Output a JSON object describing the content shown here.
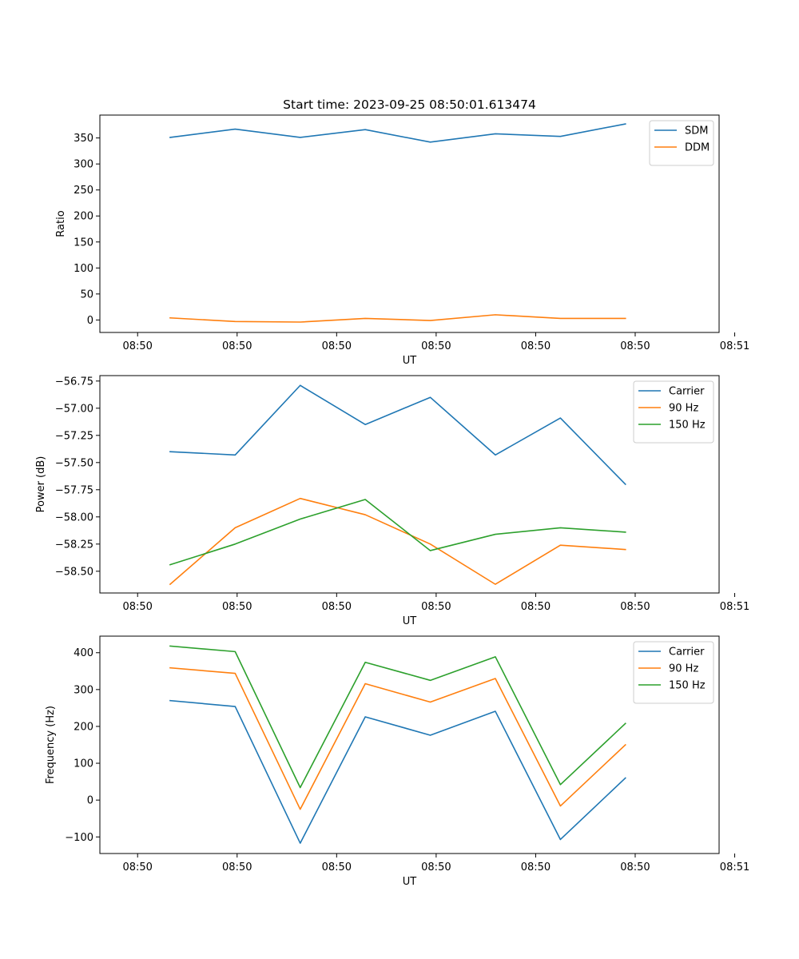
{
  "figure_title": "Start time: 2023-09-25 08:50:01.613474",
  "colors": {
    "blue": "#1f77b4",
    "orange": "#ff7f0e",
    "green": "#2ca02c"
  },
  "chart_data": [
    {
      "type": "line",
      "title": "Start time: 2023-09-25 08:50:01.613474",
      "xlabel": "UT",
      "ylabel": "Ratio",
      "x": [
        0.5,
        1.5,
        2.5,
        3.5,
        4.5,
        5.5,
        6.5,
        7.5
      ],
      "xlim": [
        -0.58,
        8.94
      ],
      "x_ticks": [
        0,
        1.53,
        3.06,
        4.59,
        6.12,
        7.65,
        9.18
      ],
      "x_tick_labels": [
        "08:50",
        "08:50",
        "08:50",
        "08:50",
        "08:50",
        "08:50",
        "08:51"
      ],
      "ylim": [
        -24,
        394
      ],
      "y_ticks": [
        0,
        50,
        100,
        150,
        200,
        250,
        300,
        350
      ],
      "y_tick_labels": [
        "0",
        "50",
        "100",
        "150",
        "200",
        "250",
        "300",
        "350"
      ],
      "legend_position": "top-right",
      "series": [
        {
          "name": "SDM",
          "color": "#1f77b4",
          "values": [
            351,
            367,
            351,
            366,
            342,
            358,
            353,
            377
          ]
        },
        {
          "name": "DDM",
          "color": "#ff7f0e",
          "values": [
            4,
            -3,
            -4,
            3,
            -1,
            10,
            3,
            3
          ]
        }
      ]
    },
    {
      "type": "line",
      "title": "",
      "xlabel": "UT",
      "ylabel": "Power (dB)",
      "x": [
        0.5,
        1.5,
        2.5,
        3.5,
        4.5,
        5.5,
        6.5,
        7.5
      ],
      "xlim": [
        -0.58,
        8.94
      ],
      "x_ticks": [
        0,
        1.53,
        3.06,
        4.59,
        6.12,
        7.65,
        9.18
      ],
      "x_tick_labels": [
        "08:50",
        "08:50",
        "08:50",
        "08:50",
        "08:50",
        "08:50",
        "08:51"
      ],
      "ylim": [
        -58.7,
        -56.7
      ],
      "y_ticks": [
        -58.5,
        -58.25,
        -58.0,
        -57.75,
        -57.5,
        -57.25,
        -57.0,
        -56.75
      ],
      "y_tick_labels": [
        "−58.50",
        "−58.25",
        "−58.00",
        "−57.75",
        "−57.50",
        "−57.25",
        "−57.00",
        "−56.75"
      ],
      "legend_position": "top-right",
      "series": [
        {
          "name": "Carrier",
          "color": "#1f77b4",
          "values": [
            -57.4,
            -57.43,
            -56.79,
            -57.15,
            -56.9,
            -57.43,
            -57.09,
            -57.7
          ]
        },
        {
          "name": "90 Hz",
          "color": "#ff7f0e",
          "values": [
            -58.62,
            -58.1,
            -57.83,
            -57.98,
            -58.25,
            -58.62,
            -58.26,
            -58.3
          ]
        },
        {
          "name": "150 Hz",
          "color": "#2ca02c",
          "values": [
            -58.44,
            -58.25,
            -58.02,
            -57.84,
            -58.31,
            -58.16,
            -58.1,
            -58.14
          ]
        }
      ]
    },
    {
      "type": "line",
      "title": "",
      "xlabel": "UT",
      "ylabel": "Frequency (Hz)",
      "x": [
        0.5,
        1.5,
        2.5,
        3.5,
        4.5,
        5.5,
        6.5,
        7.5
      ],
      "xlim": [
        -0.58,
        8.94
      ],
      "x_ticks": [
        0,
        1.53,
        3.06,
        4.59,
        6.12,
        7.65,
        9.18
      ],
      "x_tick_labels": [
        "08:50",
        "08:50",
        "08:50",
        "08:50",
        "08:50",
        "08:50",
        "08:51"
      ],
      "ylim": [
        -145,
        445
      ],
      "y_ticks": [
        -100,
        0,
        100,
        200,
        300,
        400
      ],
      "y_tick_labels": [
        "−100",
        "0",
        "100",
        "200",
        "300",
        "400"
      ],
      "legend_position": "top-right",
      "series": [
        {
          "name": "Carrier",
          "color": "#1f77b4",
          "values": [
            270,
            254,
            -117,
            226,
            176,
            241,
            -107,
            60
          ]
        },
        {
          "name": "90 Hz",
          "color": "#ff7f0e",
          "values": [
            359,
            344,
            -25,
            316,
            266,
            330,
            -16,
            150
          ]
        },
        {
          "name": "150 Hz",
          "color": "#2ca02c",
          "values": [
            418,
            403,
            34,
            374,
            325,
            389,
            42,
            208
          ]
        }
      ]
    }
  ]
}
